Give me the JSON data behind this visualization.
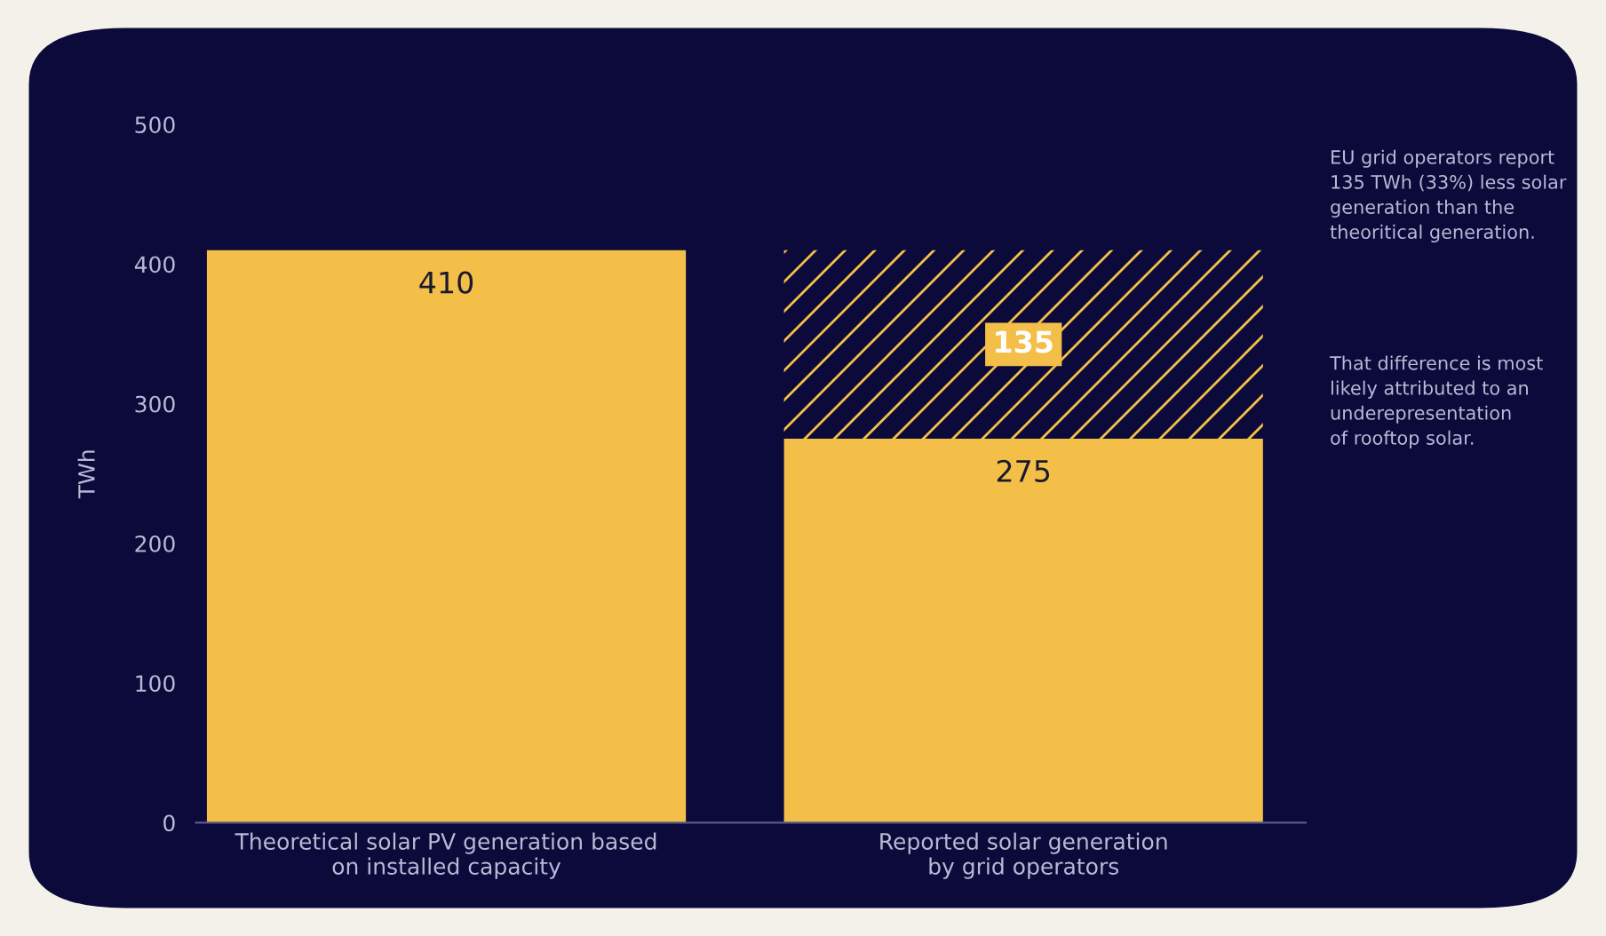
{
  "chart_data": {
    "type": "bar",
    "stacked": true,
    "ylabel": "TWh",
    "categories": [
      "Theoretical solar PV generation based\non installed capacity",
      "Reported solar generation\nby grid operators"
    ],
    "series": [
      {
        "color": "#f4bf48",
        "values": [
          410,
          275
        ],
        "value_labels": [
          "410",
          "275"
        ]
      },
      {
        "color": "#f4bf48",
        "values": [
          null,
          135
        ],
        "value_labels": [
          null,
          "135"
        ]
      }
    ],
    "ylim": [
      0,
      500
    ],
    "yticks": [
      0,
      100,
      200,
      300,
      400,
      500
    ],
    "annotations": [
      "EU grid operators report\n135 TWh (33%) less solar\ngeneration than the\ntheoritical generation.",
      "That difference is most\nlikely attributed to an\nunderepresentation\nof rooftop solar."
    ]
  }
}
